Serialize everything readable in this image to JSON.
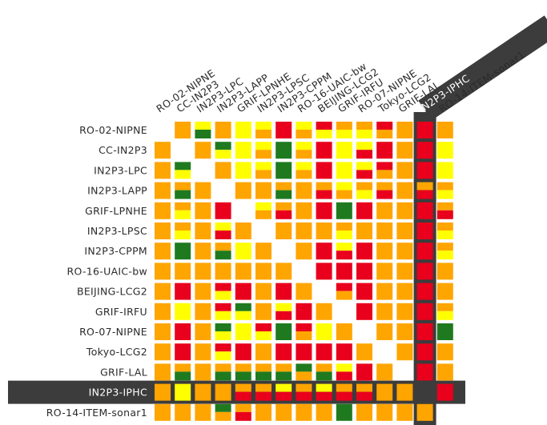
{
  "colors": {
    "orange": "#ffa500",
    "yellow": "#ffff00",
    "red": "#e8001c",
    "green": "#1f7a1f",
    "highlight": "#3c3c3c"
  },
  "sites": [
    "RO-02-NIPNE",
    "CC-IN2P3",
    "IN2P3-LPC",
    "IN2P3-LAPP",
    "GRIF-LPNHE",
    "IN2P3-LPSC",
    "IN2P3-CPPM",
    "RO-16-UAIC-bw",
    "BEIJING-LCG2",
    "GRIF-IRFU",
    "RO-07-NIPNE",
    "Tokyo-LCG2",
    "GRIF-LAL",
    "IN2P3-IPHC",
    "RO-14-ITEM-sonar1"
  ],
  "selected_site": "IN2P3-IPHC",
  "cells": [
    [
      "",
      "O",
      "YG",
      "O",
      "Y",
      "YO",
      "R",
      "YO",
      "RY",
      "OY",
      "OY",
      "RO",
      "O",
      "R",
      "O"
    ],
    [
      "O",
      "",
      "O",
      "GY",
      "Y",
      "YO",
      "G",
      "YO",
      "R",
      "Y",
      "YR",
      "R",
      "O",
      "R",
      "Y"
    ],
    [
      "O",
      "GY",
      "",
      "O",
      "Y",
      "YO",
      "G",
      "YO",
      "R",
      "Y",
      "YR",
      "RO",
      "O",
      "R",
      "Y"
    ],
    [
      "O",
      "OG",
      "O",
      "",
      "O",
      "O",
      "OG",
      "O",
      "OR",
      "YO",
      "OY",
      "OR",
      "O",
      "OR",
      "OY"
    ],
    [
      "O",
      "OY",
      "O",
      "R",
      "",
      "YO",
      "OR",
      "O",
      "R",
      "G",
      "R",
      "O",
      "O",
      "R",
      "OR"
    ],
    [
      "O",
      "OY",
      "O",
      "YR",
      "O",
      "",
      "O",
      "O",
      "O",
      "OY",
      "O",
      "O",
      "O",
      "R",
      "OY"
    ],
    [
      "O",
      "G",
      "O",
      "OG",
      "Y",
      "O",
      "",
      "O",
      "R",
      "YR",
      "R",
      "O",
      "O",
      "R",
      "OY"
    ],
    [
      "O",
      "O",
      "O",
      "O",
      "O",
      "O",
      "O",
      "",
      "R",
      "R",
      "R",
      "O",
      "O",
      "R",
      "O"
    ],
    [
      "O",
      "R",
      "O",
      "RY",
      "R",
      "O",
      "R",
      "O",
      "",
      "RO",
      "R",
      "O",
      "O",
      "R",
      "O"
    ],
    [
      "O",
      "Y",
      "O",
      "RY",
      "GY",
      "O",
      "YR",
      "R",
      "O",
      "",
      "R",
      "O",
      "O",
      "R",
      "OY"
    ],
    [
      "O",
      "R",
      "O",
      "GY",
      "Y",
      "RY",
      "G",
      "RO",
      "Y",
      "O",
      "",
      "O",
      "O",
      "R",
      "G"
    ],
    [
      "O",
      "R",
      "O",
      "RY",
      "R",
      "O",
      "R",
      "R",
      "R",
      "R",
      "O",
      "",
      "O",
      "R",
      "O"
    ],
    [
      "O",
      "OG",
      "O",
      "OG",
      "OG",
      "OG",
      "OG",
      "GO",
      "OG",
      "YR",
      "R",
      "O",
      "",
      "R",
      "O"
    ],
    [
      "O",
      "Y",
      "O",
      "O",
      "OR",
      "OR",
      "YR",
      "OR",
      "YR",
      "OR",
      "OR",
      "O",
      "O",
      "",
      "R"
    ],
    [
      "O",
      "O",
      "O",
      "GO",
      "OR",
      "O",
      "O",
      "O",
      "O",
      "G",
      "O",
      "O",
      "O",
      "O",
      ""
    ]
  ]
}
